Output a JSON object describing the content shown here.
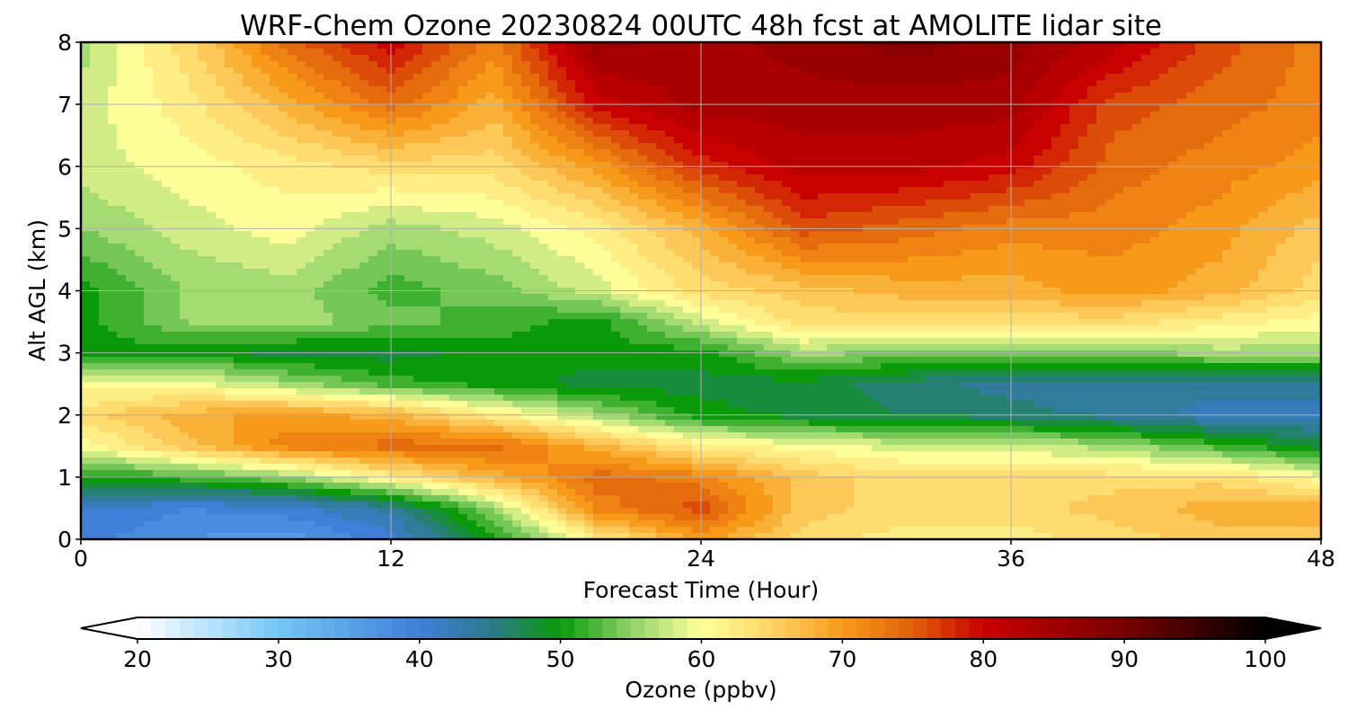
{
  "chart_data": {
    "type": "heatmap",
    "title": "WRF-Chem Ozone  20230824 00UTC 48h fcst at AMOLITE lidar site",
    "xlabel": "Forecast Time (Hour)",
    "ylabel": "Alt AGL (km)",
    "xlim": [
      0,
      48
    ],
    "ylim": [
      0,
      8
    ],
    "xticks": [
      0,
      12,
      24,
      36,
      48
    ],
    "yticks": [
      0,
      1,
      2,
      3,
      4,
      5,
      6,
      7,
      8
    ],
    "grid": true,
    "colorbar": {
      "label": "Ozone  (ppbv)",
      "range": [
        20,
        100
      ],
      "ticks": [
        20,
        30,
        40,
        50,
        60,
        70,
        80,
        90,
        100
      ],
      "extend": "both",
      "stops": [
        {
          "v": 20,
          "color": "#ffffff"
        },
        {
          "v": 30,
          "color": "#74c7f5"
        },
        {
          "v": 40,
          "color": "#3f7fd8"
        },
        {
          "v": 45,
          "color": "#2d7a8c"
        },
        {
          "v": 50,
          "color": "#0a9a0a"
        },
        {
          "v": 55,
          "color": "#8fd26a"
        },
        {
          "v": 60,
          "color": "#ffff99"
        },
        {
          "v": 65,
          "color": "#ffd366"
        },
        {
          "v": 70,
          "color": "#f79a1a"
        },
        {
          "v": 75,
          "color": "#e0600a"
        },
        {
          "v": 80,
          "color": "#c80000"
        },
        {
          "v": 90,
          "color": "#780000"
        },
        {
          "v": 100,
          "color": "#000000"
        }
      ]
    },
    "hours": [
      0,
      4,
      8,
      12,
      16,
      20,
      24,
      28,
      32,
      36,
      40,
      44,
      48
    ],
    "altitudes_km": [
      0,
      0.5,
      1,
      1.5,
      2,
      2.5,
      3,
      3.5,
      4,
      5,
      6,
      7,
      8
    ],
    "values": [
      [
        40,
        37,
        36,
        40,
        50,
        62,
        70,
        64,
        62,
        62,
        64,
        66,
        66
      ],
      [
        41,
        39,
        40,
        44,
        56,
        72,
        76,
        66,
        64,
        64,
        66,
        68,
        68
      ],
      [
        50,
        52,
        55,
        62,
        68,
        74,
        72,
        66,
        64,
        64,
        64,
        64,
        60
      ],
      [
        60,
        66,
        72,
        74,
        74,
        68,
        62,
        60,
        58,
        58,
        56,
        52,
        48
      ],
      [
        64,
        68,
        70,
        68,
        62,
        56,
        50,
        48,
        47,
        46,
        44,
        42,
        42
      ],
      [
        60,
        60,
        56,
        52,
        50,
        48,
        48,
        48,
        46,
        44,
        44,
        44,
        44
      ],
      [
        50,
        50,
        48,
        48,
        50,
        50,
        50,
        56,
        54,
        54,
        54,
        56,
        56
      ],
      [
        50,
        55,
        56,
        54,
        52,
        50,
        58,
        64,
        64,
        64,
        64,
        62,
        60
      ],
      [
        50,
        55,
        56,
        52,
        54,
        58,
        64,
        66,
        68,
        68,
        70,
        68,
        64
      ],
      [
        55,
        58,
        60,
        56,
        58,
        62,
        68,
        76,
        74,
        72,
        72,
        70,
        66
      ],
      [
        58,
        60,
        62,
        64,
        64,
        70,
        78,
        82,
        82,
        80,
        74,
        72,
        70
      ],
      [
        58,
        62,
        68,
        74,
        68,
        80,
        84,
        84,
        84,
        84,
        76,
        74,
        72
      ],
      [
        56,
        64,
        74,
        80,
        72,
        86,
        84,
        86,
        88,
        86,
        82,
        76,
        72
      ]
    ]
  }
}
